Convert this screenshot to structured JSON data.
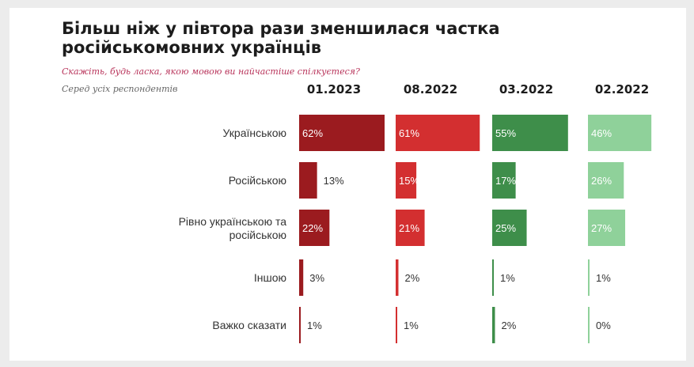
{
  "title_line1": "Більш ніж у півтора рази зменшилася частка",
  "title_line2": "російськомовних українців",
  "question": "Скажіть, будь ласка, якою мовою ви найчастіше спілкуєтеся?",
  "base": "Серед усіх респондентів",
  "colors": {
    "01.2023": "#9b1b1f",
    "08.2022": "#d32f30",
    "03.2022": "#3e8e4a",
    "02.2022": "#8fd19a"
  },
  "chart_data": {
    "type": "bar",
    "orientation": "horizontal",
    "categories": [
      "Українською",
      "Російською",
      "Рівно українською та російською",
      "Іншою",
      "Важко сказати"
    ],
    "category_lines": [
      [
        "Українською"
      ],
      [
        "Російською"
      ],
      [
        "Рівно українською та",
        "російською"
      ],
      [
        "Іншою"
      ],
      [
        "Важко сказати"
      ]
    ],
    "series": [
      {
        "name": "01.2023",
        "values": [
          62,
          13,
          22,
          3,
          1
        ]
      },
      {
        "name": "08.2022",
        "values": [
          61,
          15,
          21,
          2,
          1
        ]
      },
      {
        "name": "03.2022",
        "values": [
          55,
          17,
          25,
          1,
          2
        ]
      },
      {
        "name": "02.2022",
        "values": [
          46,
          26,
          27,
          1,
          0
        ]
      }
    ],
    "value_suffix": "%",
    "xlim": [
      0,
      62
    ]
  }
}
